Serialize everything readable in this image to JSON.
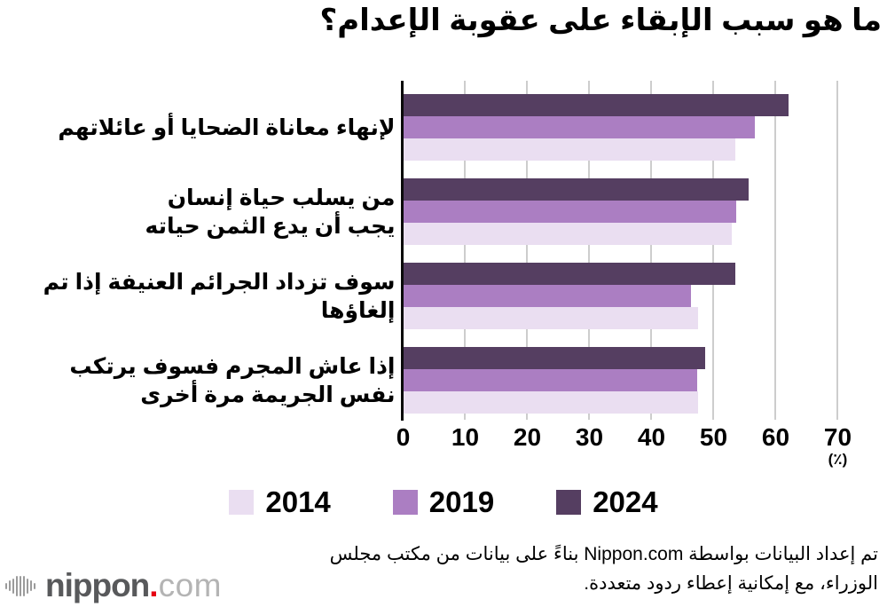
{
  "title": "ما هو سبب الإبقاء على عقوبة الإعدام؟",
  "chart_data": {
    "type": "bar",
    "orientation": "horizontal",
    "title": "ما هو سبب الإبقاء على عقوبة الإعدام؟",
    "categories": [
      "لإنهاء معاناة الضحايا أو عائلاتهم",
      "من يسلب حياة إنسان\nيجب أن يدع الثمن حياته",
      "سوف تزداد الجرائم العنيفة إذا تم إلغاؤها",
      "إذا عاش المجرم فسوف يرتكب\nنفس الجريمة مرة أخرى"
    ],
    "series": [
      {
        "name": "2014",
        "color": "#eadef1",
        "values": [
          53.4,
          52.9,
          47.4,
          47.4
        ]
      },
      {
        "name": "2019",
        "color": "#ab7ec2",
        "values": [
          56.6,
          53.6,
          46.3,
          47.3
        ]
      },
      {
        "name": "2024",
        "color": "#553e61",
        "values": [
          62.0,
          55.6,
          53.4,
          48.6
        ]
      }
    ],
    "xlim": [
      0,
      70
    ],
    "xticks": [
      0,
      10,
      20,
      30,
      40,
      50,
      60,
      70
    ],
    "unit_label": "(٪)",
    "grid": true,
    "gridline_color": "#cdcdcd",
    "legend_position": "bottom"
  },
  "footer": {
    "line1": "تم إعداد البيانات بواسطة Nippon.com بناءً على بيانات من مكتب مجلس",
    "line2": "الوزراء، مع إمكانية إعطاء ردود متعددة."
  },
  "logo": {
    "name_bold": "nippon",
    "dot": ".",
    "name_light": "com"
  }
}
